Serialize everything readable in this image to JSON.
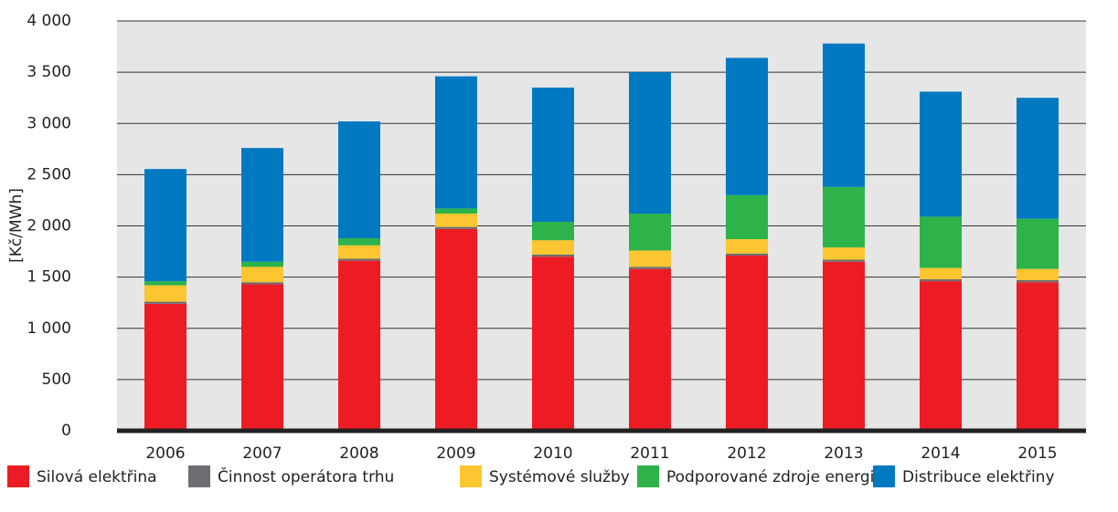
{
  "chart_data": {
    "type": "stacked_bar",
    "y_label": "[Kč/MWh]",
    "categories": [
      "2006",
      "2007",
      "2008",
      "2009",
      "2010",
      "2011",
      "2012",
      "2013",
      "2014",
      "2015"
    ],
    "series": [
      {
        "name": "Silová elektřina",
        "color": "#ed1c24",
        "values": [
          1240,
          1430,
          1660,
          1970,
          1700,
          1580,
          1710,
          1650,
          1460,
          1450
        ]
      },
      {
        "name": "Činnost operátora trhu",
        "color": "#6d6e71",
        "values": [
          20,
          20,
          20,
          20,
          20,
          20,
          20,
          20,
          20,
          20
        ]
      },
      {
        "name": "Systémové služby",
        "color": "#fdc52f",
        "values": [
          160,
          150,
          130,
          130,
          140,
          160,
          140,
          120,
          110,
          110
        ]
      },
      {
        "name": "Podporované zdroje energie",
        "color": "#2db34a",
        "values": [
          40,
          50,
          70,
          50,
          180,
          360,
          430,
          590,
          500,
          490
        ]
      },
      {
        "name": "Distribuce elektřiny",
        "color": "#0079c1",
        "values": [
          1095,
          1110,
          1140,
          1290,
          1310,
          1380,
          1340,
          1400,
          1220,
          1180
        ]
      }
    ],
    "ylim": [
      0,
      4000
    ],
    "yticks": [
      0,
      500,
      {
        "value": 1000,
        "label": "1 000"
      },
      {
        "value": 1500,
        "label": "1 500"
      },
      {
        "value": 2000,
        "label": "2 000"
      },
      {
        "value": 2500,
        "label": "2 500"
      },
      {
        "value": 3000,
        "label": "3 000"
      },
      {
        "value": 3500,
        "label": "3 500"
      },
      {
        "value": 4000,
        "label": "4 000"
      }
    ],
    "grid": true
  }
}
